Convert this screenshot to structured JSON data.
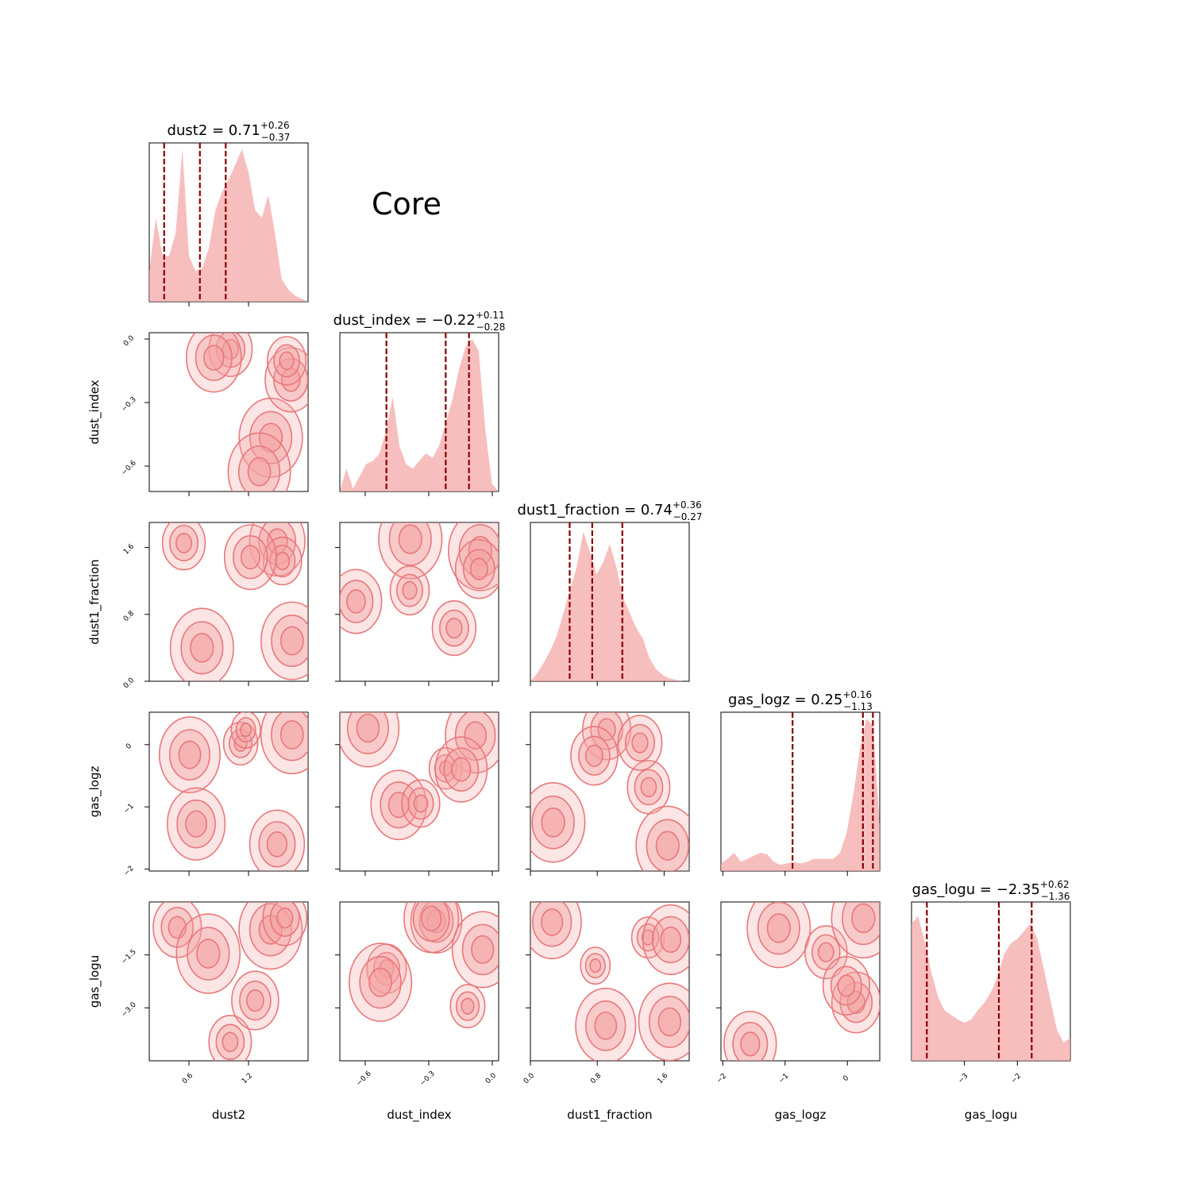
{
  "chart_data": {
    "type": "corner",
    "label": "Core",
    "colors": {
      "fill": "#f4a3a3",
      "line": "#e8787a",
      "marker": "#8b0000"
    },
    "params": [
      {
        "name": "dust2",
        "median": "0.71",
        "plus": "+0.26",
        "minus": "−0.37",
        "range": [
          0.2,
          1.8
        ],
        "ticks": [
          0.6,
          1.2
        ],
        "tick_labels": [
          "0.6",
          "1.2"
        ],
        "quantiles": [
          0.35,
          0.71,
          0.97
        ]
      },
      {
        "name": "dust_index",
        "median": "−0.22",
        "plus": "+0.11",
        "minus": "−0.28",
        "range": [
          -0.72,
          0.03
        ],
        "ticks": [
          -0.6,
          -0.3,
          0.0
        ],
        "tick_labels": [
          "−0.6",
          "−0.3",
          "0.0"
        ],
        "quantiles": [
          -0.5,
          -0.22,
          -0.11
        ]
      },
      {
        "name": "dust1_fraction",
        "median": "0.74",
        "plus": "+0.36",
        "minus": "−0.27",
        "range": [
          0.0,
          1.9
        ],
        "ticks": [
          0.0,
          0.8,
          1.6
        ],
        "tick_labels": [
          "0.0",
          "0.8",
          "1.6"
        ],
        "quantiles": [
          0.47,
          0.74,
          1.1
        ]
      },
      {
        "name": "gas_logz",
        "median": "0.25",
        "plus": "+0.16",
        "minus": "−1.13",
        "range": [
          -2.03,
          0.52
        ],
        "ticks": [
          -2,
          -1,
          0
        ],
        "tick_labels": [
          "−2",
          "−1",
          "0"
        ],
        "quantiles": [
          -0.88,
          0.25,
          0.41
        ]
      },
      {
        "name": "gas_logu",
        "median": "−2.35",
        "plus": "+0.62",
        "minus": "−1.36",
        "range": [
          -4.0,
          -1.0
        ],
        "ticks": [
          -3,
          -2
        ],
        "tick_labels": [
          "−3",
          "−2"
        ],
        "quantiles": [
          -3.71,
          -2.35,
          -1.73
        ]
      }
    ],
    "y_ticks": {
      "dust_index": [
        "0.0",
        "−0.3",
        "−0.6"
      ],
      "dust1_fraction": [
        "1.6",
        "0.8",
        "0.0"
      ],
      "gas_logz": [
        "0",
        "−1",
        "−2"
      ],
      "gas_logu": [
        "−1.5",
        "−3.0"
      ]
    },
    "marginals": {
      "dust2": [
        0.2,
        0.55,
        0.3,
        0.3,
        0.45,
        1.0,
        0.3,
        0.2,
        0.22,
        0.35,
        0.6,
        0.72,
        0.8,
        0.9,
        1.0,
        0.85,
        0.6,
        0.55,
        0.7,
        0.45,
        0.15,
        0.08,
        0.04,
        0.02,
        0.0
      ],
      "dust_index": [
        0.0,
        0.15,
        0.02,
        0.1,
        0.18,
        0.2,
        0.25,
        0.4,
        0.62,
        0.3,
        0.18,
        0.15,
        0.2,
        0.25,
        0.22,
        0.3,
        0.45,
        0.6,
        0.8,
        0.95,
        1.0,
        0.92,
        0.4,
        0.05,
        0.0
      ],
      "dust1_fraction": [
        0.0,
        0.05,
        0.12,
        0.2,
        0.3,
        0.45,
        0.6,
        0.75,
        0.98,
        0.85,
        0.7,
        0.78,
        0.9,
        0.75,
        0.55,
        0.45,
        0.35,
        0.28,
        0.15,
        0.08,
        0.04,
        0.02,
        0.01,
        0.0,
        0.0
      ],
      "gas_logz": [
        0.05,
        0.08,
        0.12,
        0.06,
        0.08,
        0.1,
        0.12,
        0.11,
        0.06,
        0.04,
        0.05,
        0.06,
        0.05,
        0.06,
        0.08,
        0.08,
        0.08,
        0.08,
        0.12,
        0.25,
        0.5,
        0.8,
        1.0,
        0.95,
        0.3
      ],
      "gas_logu": [
        0.9,
        0.95,
        0.78,
        0.58,
        0.42,
        0.33,
        0.3,
        0.27,
        0.25,
        0.27,
        0.33,
        0.38,
        0.45,
        0.55,
        0.7,
        0.77,
        0.8,
        0.85,
        0.9,
        0.8,
        0.6,
        0.4,
        0.2,
        0.12,
        0.15
      ]
    }
  }
}
